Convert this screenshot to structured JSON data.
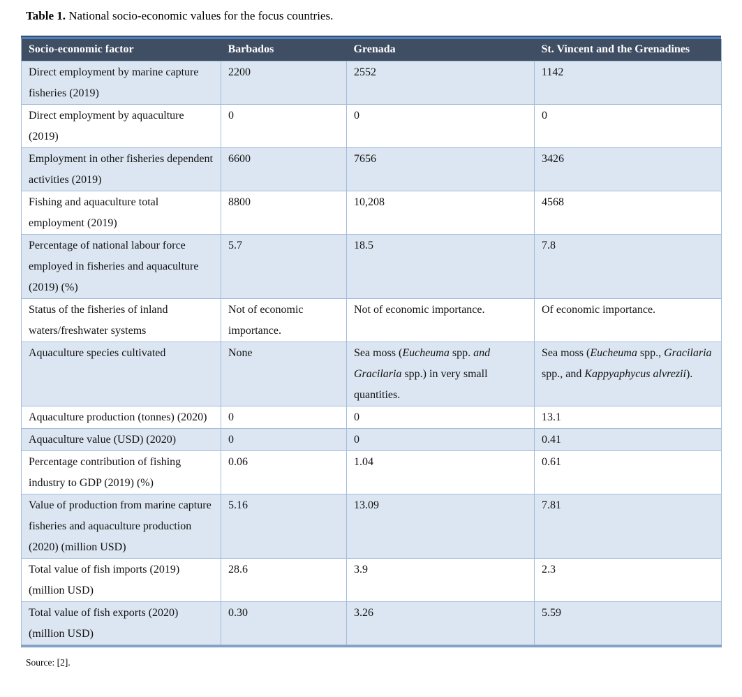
{
  "caption": {
    "label": "Table 1.",
    "text": " National socio-economic values for the focus countries."
  },
  "colors": {
    "header_background": "#3f4e63",
    "header_text": "#ffffff",
    "top_stripe": "#4e81bd",
    "shaded_row": "#dce6f2",
    "grid_line": "#a3bcd9",
    "bottom_border": "#84a3c4"
  },
  "table": {
    "columns": [
      "Socio-economic factor",
      "Barbados",
      "Grenada",
      "St. Vincent and the Grenadines"
    ],
    "rows": [
      {
        "shaded": true,
        "cells": [
          "Direct employment by marine capture fisheries (2019)",
          "2200",
          "2552",
          "1142"
        ]
      },
      {
        "shaded": false,
        "cells": [
          "Direct employment by aquaculture (2019)",
          "0",
          "0",
          "0"
        ]
      },
      {
        "shaded": true,
        "cells": [
          "Employment in other fisheries dependent activities (2019)",
          "6600",
          "7656",
          "3426"
        ]
      },
      {
        "shaded": false,
        "cells": [
          "Fishing and aquaculture total employment (2019)",
          "8800",
          "10,208",
          "4568"
        ]
      },
      {
        "shaded": true,
        "cells": [
          "Percentage of national labour force employed in fisheries and aquaculture (2019) (%)",
          "5.7",
          "18.5",
          "7.8"
        ]
      },
      {
        "shaded": false,
        "cells": [
          "Status of the fisheries of inland waters/freshwater systems",
          "Not of economic importance.",
          "Not of economic importance.",
          "Of economic importance."
        ]
      },
      {
        "shaded": true,
        "cells": [
          "Aquaculture species cultivated",
          "None",
          [
            {
              "t": "Sea moss (",
              "i": false
            },
            {
              "t": "Eucheuma",
              "i": true
            },
            {
              "t": " spp. ",
              "i": false
            },
            {
              "t": "and",
              "i": true
            },
            {
              "t": " ",
              "i": false
            },
            {
              "t": "Gracilaria",
              "i": true
            },
            {
              "t": " spp.) in very small quantities.",
              "i": false
            }
          ],
          [
            {
              "t": "Sea moss (",
              "i": false
            },
            {
              "t": "Eucheuma",
              "i": true
            },
            {
              "t": " spp., ",
              "i": false
            },
            {
              "t": "Gracilaria",
              "i": true
            },
            {
              "t": " spp., and ",
              "i": false
            },
            {
              "t": "Kappyaphycus alvrezii",
              "i": true
            },
            {
              "t": ").",
              "i": false
            }
          ]
        ]
      },
      {
        "shaded": false,
        "cells": [
          "Aquaculture production (tonnes) (2020)",
          "0",
          "0",
          "13.1"
        ]
      },
      {
        "shaded": true,
        "cells": [
          "Aquaculture value (USD) (2020)",
          "0",
          "0",
          "0.41"
        ]
      },
      {
        "shaded": false,
        "cells": [
          "Percentage contribution of fishing industry to GDP (2019) (%)",
          "0.06",
          "1.04",
          "0.61"
        ]
      },
      {
        "shaded": true,
        "cells": [
          "Value of production from marine capture fisheries and aquaculture production (2020) (million USD)",
          "5.16",
          "13.09",
          "7.81"
        ]
      },
      {
        "shaded": false,
        "cells": [
          "Total value of fish imports (2019) (million USD)",
          "28.6",
          "3.9",
          "2.3"
        ]
      },
      {
        "shaded": true,
        "cells": [
          "Total value of fish exports (2020) (million USD)",
          "0.30",
          "3.26",
          "5.59"
        ]
      }
    ]
  },
  "source": "Source: [2]."
}
